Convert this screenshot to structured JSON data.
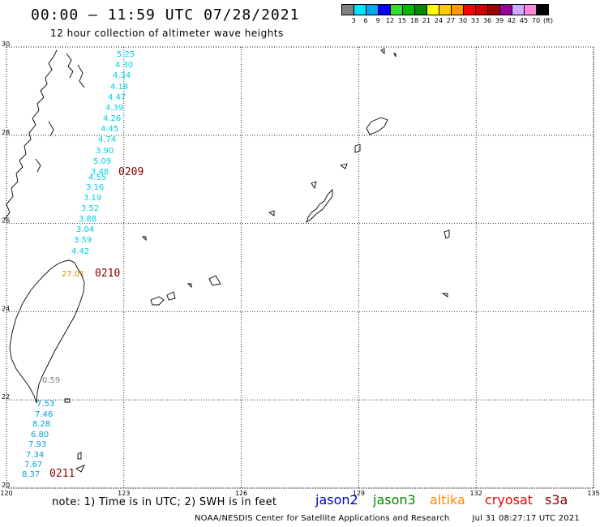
{
  "header": {
    "title": "00:00 – 11:59 UTC 07/28/2021",
    "subtitle": "12 hour collection of altimeter wave heights"
  },
  "color_scale": {
    "unit": "(ft)",
    "swatches": [
      "#808080",
      "#00e5ff",
      "#00a8f0",
      "#0000ff",
      "#33dd33",
      "#00b800",
      "#008800",
      "#ffff00",
      "#ffcc00",
      "#ff9900",
      "#ff0000",
      "#d00000",
      "#990000",
      "#990099",
      "#ccaaff",
      "#ff88dd",
      "#000000"
    ],
    "labels": [
      "3",
      "6",
      "9",
      "12",
      "15",
      "18",
      "21",
      "24",
      "27",
      "30",
      "33",
      "36",
      "39",
      "42",
      "45",
      "70"
    ]
  },
  "axes": {
    "lon_ticks": [
      "120",
      "123",
      "126",
      "129",
      "132",
      "135"
    ],
    "lat_ticks": [
      "30",
      "28",
      "26",
      "24",
      "22",
      "20"
    ],
    "lon_range": [
      120,
      135
    ],
    "lat_range": [
      20,
      30
    ]
  },
  "tracks": [
    {
      "time": "0209",
      "time_color": "#880000",
      "points": [
        {
          "v": "5.25",
          "c": "#00d0e0"
        },
        {
          "v": "4.30",
          "c": "#00d0e0"
        },
        {
          "v": "4.34",
          "c": "#00d0e0"
        },
        {
          "v": "4.18",
          "c": "#00d0e0"
        },
        {
          "v": "4.47",
          "c": "#00d0e0"
        },
        {
          "v": "4.39",
          "c": "#00d0e0"
        },
        {
          "v": "4.26",
          "c": "#00d0e0"
        },
        {
          "v": "4.45",
          "c": "#00d0e0"
        },
        {
          "v": "4.74",
          "c": "#00d0e0"
        },
        {
          "v": "3.90",
          "c": "#00d0e0"
        },
        {
          "v": "5.09",
          "c": "#00d0e0"
        },
        {
          "v": "3.48",
          "c": "#00d0e0"
        },
        {
          "v": "4.55",
          "c": "#00d0e0"
        },
        {
          "v": "3.16",
          "c": "#00d0e0"
        },
        {
          "v": "3.19",
          "c": "#00d0e0"
        },
        {
          "v": "3.52",
          "c": "#00d0e0"
        },
        {
          "v": "3.88",
          "c": "#00d0e0"
        },
        {
          "v": "3.04",
          "c": "#00d0e0"
        },
        {
          "v": "3.59",
          "c": "#00d0e0"
        },
        {
          "v": "4.42",
          "c": "#00d0e0"
        }
      ]
    },
    {
      "time": "0210",
      "time_color": "#880000",
      "points": [
        {
          "v": "27.01",
          "c": "#e09000"
        },
        {
          "v": "0.59",
          "c": "#808080"
        }
      ]
    },
    {
      "time": "0211",
      "time_color": "#880000",
      "points": [
        {
          "v": "7.53",
          "c": "#00a0d8"
        },
        {
          "v": "7.46",
          "c": "#00a0d8"
        },
        {
          "v": "8.28",
          "c": "#00a0d8"
        },
        {
          "v": "6.80",
          "c": "#00a0d8"
        },
        {
          "v": "7.93",
          "c": "#00a0d8"
        },
        {
          "v": "7.34",
          "c": "#00a0d8"
        },
        {
          "v": "7.67",
          "c": "#00a0d8"
        },
        {
          "v": "8.37",
          "c": "#00a0d8"
        }
      ]
    }
  ],
  "footer": {
    "note": "note: 1) Time is in UTC; 2) SWH is in feet",
    "satellites": [
      {
        "name": "jason2",
        "color": "#0000cc"
      },
      {
        "name": "jason3",
        "color": "#008800"
      },
      {
        "name": "altika",
        "color": "#ff8800"
      },
      {
        "name": "cryosat",
        "color": "#ee0000"
      },
      {
        "name": "s3a",
        "color": "#880000"
      }
    ],
    "credit": "NOAA/NESDIS Center for Satellite Applications and Research",
    "timestamp": "Jul 31 08:27:17 UTC 2021"
  }
}
